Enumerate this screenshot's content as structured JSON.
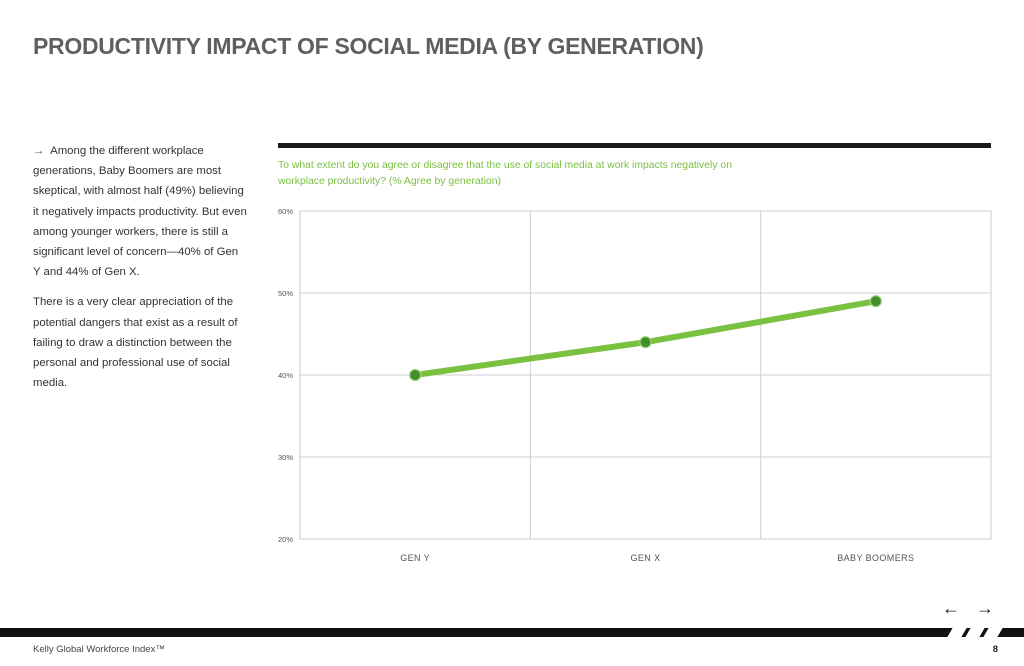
{
  "header": {
    "title": "PRODUCTIVITY IMPACT OF SOCIAL MEDIA (BY GENERATION)"
  },
  "body": {
    "arrow": "→",
    "paragraph1": "Among the different workplace generations, Baby Boomers are most skeptical, with almost half (49%) believing it negatively impacts productivity. But even among younger workers, there is still a significant level of concern—40% of Gen Y and 44% of Gen X.",
    "paragraph2": "There is a very clear appreciation of the potential dangers that exist as a result of failing to draw a distinction between the personal and professional use of social media."
  },
  "chart_data": {
    "type": "line",
    "title": "To what extent do you agree or disagree that the use of social media at work impacts negatively on workplace productivity? (% Agree by generation)",
    "categories": [
      "GEN Y",
      "GEN X",
      "BABY BOOMERS"
    ],
    "series": [
      {
        "values": [
          40,
          44,
          49
        ]
      }
    ],
    "ylim": [
      20,
      60
    ],
    "y_ticks": [
      20,
      30,
      40,
      50,
      60
    ],
    "y_tick_labels": [
      "20%",
      "30%",
      "40%",
      "50%",
      "60%"
    ],
    "xlabel": "",
    "ylabel": "",
    "grid": true,
    "line_color": "#7ac142",
    "marker_color": "#3f8f2a"
  },
  "navigation": {
    "prev_icon": "←",
    "next_icon": "→"
  },
  "footer": {
    "brand": "Kelly Global Workforce Index™",
    "page_number": "8"
  }
}
